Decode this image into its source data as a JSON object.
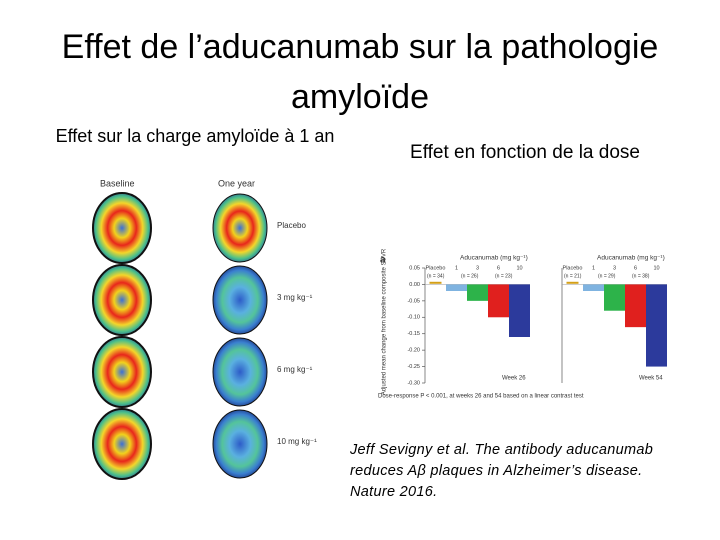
{
  "title": "Effet de l’aducanumab sur la pathologie amyloïde",
  "left": {
    "heading": "Effet sur la charge amyloïde à 1 an",
    "columns": [
      "Baseline",
      "One year"
    ],
    "rows": [
      "Placebo",
      "3 mg kg⁻¹",
      "6 mg kg⁻¹",
      "10 mg kg⁻¹"
    ]
  },
  "right": {
    "heading": "Effet en fonction de la dose",
    "panel_label": "a",
    "y_label": "Adjusted mean change from baseline composite SUVR",
    "footnote": "Dose-response P < 0.001, at weeks 26 and 54 based on a linear contrast test",
    "citation": [
      "Jeff Sevigny et al. The antibody aducanumab",
      "reduces Aβ plaques in Alzheimer’s disease.",
      "Nature 2016."
    ]
  },
  "chart_data": [
    {
      "type": "bar",
      "title": "Aducanumab (mg kg⁻¹)",
      "x_label": "Week 26",
      "categories": [
        "Placebo",
        "1",
        "3",
        "6",
        "10"
      ],
      "n_labels": [
        "(n = 34)",
        "(n = 26)",
        "(n = 23)"
      ],
      "colors": [
        "#d4a017",
        "#7fb3e0",
        "#2db34a",
        "#e0201e",
        "#2c3a9c"
      ],
      "values": [
        0.005,
        -0.02,
        -0.05,
        -0.1,
        -0.16
      ],
      "ylim": [
        -0.3,
        0.05
      ],
      "yticks": [
        {
          "value": 0.05,
          "label": "0.05"
        },
        {
          "value": 0,
          "label": "0.00"
        },
        {
          "value": -0.05,
          "label": "-0.05"
        },
        {
          "value": -0.1,
          "label": "-0.10"
        },
        {
          "value": -0.15,
          "label": "-0.15"
        },
        {
          "value": -0.2,
          "label": "-0.20"
        },
        {
          "value": -0.25,
          "label": "-0.25"
        },
        {
          "value": -0.3,
          "label": "-0.30"
        }
      ]
    },
    {
      "type": "bar",
      "title": "Aducanumab (mg kg⁻¹)",
      "x_label": "Week 54",
      "categories": [
        "Placebo",
        "1",
        "3",
        "6",
        "10"
      ],
      "n_labels": [
        "(n = 21)",
        "(n = 29)",
        "(n = 38)"
      ],
      "colors": [
        "#d4a017",
        "#7fb3e0",
        "#2db34a",
        "#e0201e",
        "#2c3a9c"
      ],
      "values": [
        0.005,
        -0.02,
        -0.08,
        -0.13,
        -0.25
      ],
      "ylim": [
        -0.3,
        0.05
      ]
    }
  ]
}
